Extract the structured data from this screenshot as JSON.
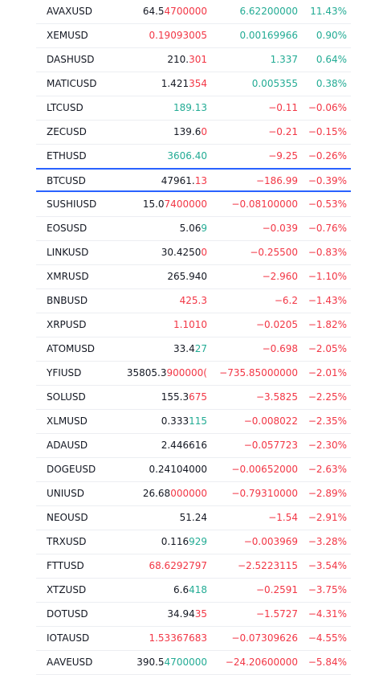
{
  "watchlist": {
    "highlight_row": 7,
    "rows": [
      {
        "symbol": "AVAXUSD",
        "price": [
          "64.5",
          "4700000"
        ],
        "price_colors": [
          "#131722",
          "#f23645"
        ],
        "change": "6.62200000",
        "change_pct": "11.43%",
        "change_color": "#22ab94"
      },
      {
        "symbol": "XEMUSD",
        "price": [
          "0.19093005"
        ],
        "price_colors": [
          "#f23645"
        ],
        "change": "0.00169966",
        "change_pct": "0.90%",
        "change_color": "#22ab94"
      },
      {
        "symbol": "DASHUSD",
        "price": [
          "210.",
          "301"
        ],
        "price_colors": [
          "#131722",
          "#f23645"
        ],
        "change": "1.337",
        "change_pct": "0.64%",
        "change_color": "#22ab94"
      },
      {
        "symbol": "MATICUSD",
        "price": [
          "1.421",
          "354"
        ],
        "price_colors": [
          "#131722",
          "#f23645"
        ],
        "change": "0.005355",
        "change_pct": "0.38%",
        "change_color": "#22ab94"
      },
      {
        "symbol": "LTCUSD",
        "price": [
          "189.13"
        ],
        "price_colors": [
          "#22ab94"
        ],
        "change": "−0.11",
        "change_pct": "−0.06%",
        "change_color": "#f23645"
      },
      {
        "symbol": "ZECUSD",
        "price": [
          "139.6",
          "0"
        ],
        "price_colors": [
          "#131722",
          "#f23645"
        ],
        "change": "−0.21",
        "change_pct": "−0.15%",
        "change_color": "#f23645"
      },
      {
        "symbol": "ETHUSD",
        "price": [
          "3606.40"
        ],
        "price_colors": [
          "#22ab94"
        ],
        "change": "−9.25",
        "change_pct": "−0.26%",
        "change_color": "#f23645"
      },
      {
        "symbol": "BTCUSD",
        "price": [
          "47961.",
          "13"
        ],
        "price_colors": [
          "#131722",
          "#f23645"
        ],
        "change": "−186.99",
        "change_pct": "−0.39%",
        "change_color": "#f23645"
      },
      {
        "symbol": "SUSHIUSD",
        "price": [
          "15.0",
          "7400000"
        ],
        "price_colors": [
          "#131722",
          "#f23645"
        ],
        "change": "−0.08100000",
        "change_pct": "−0.53%",
        "change_color": "#f23645"
      },
      {
        "symbol": "EOSUSD",
        "price": [
          "5.06",
          "9"
        ],
        "price_colors": [
          "#131722",
          "#22ab94"
        ],
        "change": "−0.039",
        "change_pct": "−0.76%",
        "change_color": "#f23645"
      },
      {
        "symbol": "LINKUSD",
        "price": [
          "30.4250",
          "0"
        ],
        "price_colors": [
          "#131722",
          "#f23645"
        ],
        "change": "−0.25500",
        "change_pct": "−0.83%",
        "change_color": "#f23645"
      },
      {
        "symbol": "XMRUSD",
        "price": [
          "265.940"
        ],
        "price_colors": [
          "#131722"
        ],
        "change": "−2.960",
        "change_pct": "−1.10%",
        "change_color": "#f23645"
      },
      {
        "symbol": "BNBUSD",
        "price": [
          "425.3"
        ],
        "price_colors": [
          "#f23645"
        ],
        "change": "−6.2",
        "change_pct": "−1.43%",
        "change_color": "#f23645"
      },
      {
        "symbol": "XRPUSD",
        "price": [
          "1.1010"
        ],
        "price_colors": [
          "#f23645"
        ],
        "change": "−0.0205",
        "change_pct": "−1.82%",
        "change_color": "#f23645"
      },
      {
        "symbol": "ATOMUSD",
        "price": [
          "33.4",
          "27"
        ],
        "price_colors": [
          "#131722",
          "#22ab94"
        ],
        "change": "−0.698",
        "change_pct": "−2.05%",
        "change_color": "#f23645"
      },
      {
        "symbol": "YFIUSD",
        "price": [
          "35805.3",
          "900000("
        ],
        "price_colors": [
          "#131722",
          "#f23645"
        ],
        "change": "−735.85000000",
        "change_pct": "−2.01%",
        "change_color": "#f23645"
      },
      {
        "symbol": "SOLUSD",
        "price": [
          "155.3",
          "675"
        ],
        "price_colors": [
          "#131722",
          "#f23645"
        ],
        "change": "−3.5825",
        "change_pct": "−2.25%",
        "change_color": "#f23645"
      },
      {
        "symbol": "XLMUSD",
        "price": [
          "0.333",
          "115"
        ],
        "price_colors": [
          "#131722",
          "#22ab94"
        ],
        "change": "−0.008022",
        "change_pct": "−2.35%",
        "change_color": "#f23645"
      },
      {
        "symbol": "ADAUSD",
        "price": [
          "2.446616"
        ],
        "price_colors": [
          "#131722"
        ],
        "change": "−0.057723",
        "change_pct": "−2.30%",
        "change_color": "#f23645"
      },
      {
        "symbol": "DOGEUSD",
        "price": [
          "0.24104000"
        ],
        "price_colors": [
          "#131722"
        ],
        "change": "−0.00652000",
        "change_pct": "−2.63%",
        "change_color": "#f23645"
      },
      {
        "symbol": "UNIUSD",
        "price": [
          "26.68",
          "000000"
        ],
        "price_colors": [
          "#131722",
          "#f23645"
        ],
        "change": "−0.79310000",
        "change_pct": "−2.89%",
        "change_color": "#f23645"
      },
      {
        "symbol": "NEOUSD",
        "price": [
          "51.24"
        ],
        "price_colors": [
          "#131722"
        ],
        "change": "−1.54",
        "change_pct": "−2.91%",
        "change_color": "#f23645"
      },
      {
        "symbol": "TRXUSD",
        "price": [
          "0.116",
          "929"
        ],
        "price_colors": [
          "#131722",
          "#22ab94"
        ],
        "change": "−0.003969",
        "change_pct": "−3.28%",
        "change_color": "#f23645"
      },
      {
        "symbol": "FTTUSD",
        "price": [
          "68.6292797"
        ],
        "price_colors": [
          "#f23645"
        ],
        "change": "−2.5223115",
        "change_pct": "−3.54%",
        "change_color": "#f23645"
      },
      {
        "symbol": "XTZUSD",
        "price": [
          "6.6",
          "418"
        ],
        "price_colors": [
          "#131722",
          "#22ab94"
        ],
        "change": "−0.2591",
        "change_pct": "−3.75%",
        "change_color": "#f23645"
      },
      {
        "symbol": "DOTUSD",
        "price": [
          "34.94",
          "35"
        ],
        "price_colors": [
          "#131722",
          "#f23645"
        ],
        "change": "−1.5727",
        "change_pct": "−4.31%",
        "change_color": "#f23645"
      },
      {
        "symbol": "IOTAUSD",
        "price": [
          "1.53367683"
        ],
        "price_colors": [
          "#f23645"
        ],
        "change": "−0.07309626",
        "change_pct": "−4.55%",
        "change_color": "#f23645"
      },
      {
        "symbol": "AAVEUSD",
        "price": [
          "390.5",
          "4700000"
        ],
        "price_colors": [
          "#131722",
          "#22ab94"
        ],
        "change": "−24.20600000",
        "change_pct": "−5.84%",
        "change_color": "#f23645"
      }
    ]
  }
}
